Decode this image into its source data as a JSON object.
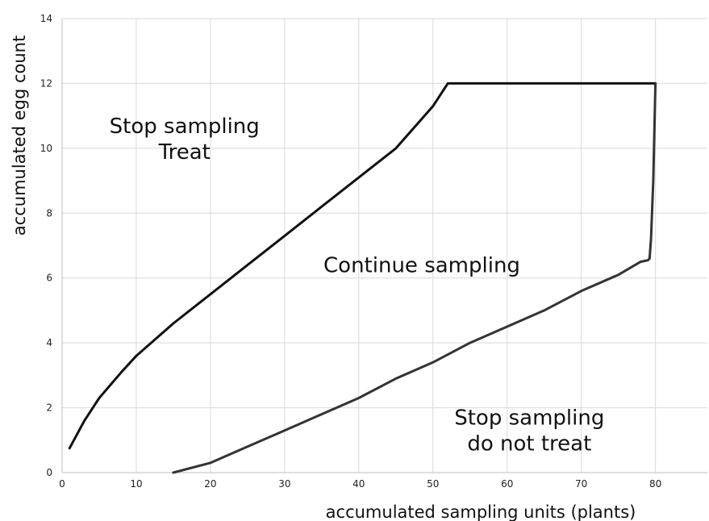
{
  "chart_data": {
    "type": "line",
    "title": "",
    "xlabel": "accumulated sampling units (plants)",
    "ylabel": "accumulated egg count",
    "xlim": [
      0,
      87
    ],
    "ylim": [
      0,
      14
    ],
    "x_ticks": [
      0,
      10,
      20,
      30,
      40,
      50,
      60,
      70,
      80
    ],
    "y_ticks": [
      0,
      2,
      4,
      6,
      8,
      10,
      12,
      14
    ],
    "grid": true,
    "legend": "none",
    "series": [
      {
        "color": "#111111",
        "points": [
          [
            1,
            0.75
          ],
          [
            3,
            1.6
          ],
          [
            5,
            2.3
          ],
          [
            8,
            3.1
          ],
          [
            10,
            3.6
          ],
          [
            15,
            4.6
          ],
          [
            20,
            5.5
          ],
          [
            25,
            6.4
          ],
          [
            30,
            7.3
          ],
          [
            35,
            8.2
          ],
          [
            40,
            9.1
          ],
          [
            45,
            10.0
          ],
          [
            50,
            11.3
          ],
          [
            52,
            12.0
          ],
          [
            53,
            12.0
          ],
          [
            60,
            12.0
          ],
          [
            70,
            12.0
          ],
          [
            80,
            12.0
          ]
        ]
      },
      {
        "color": "#333333",
        "points": [
          [
            15,
            0
          ],
          [
            20,
            0.3
          ],
          [
            25,
            0.8
          ],
          [
            30,
            1.3
          ],
          [
            35,
            1.8
          ],
          [
            40,
            2.3
          ],
          [
            45,
            2.9
          ],
          [
            50,
            3.4
          ],
          [
            55,
            4.0
          ],
          [
            60,
            4.5
          ],
          [
            65,
            5.0
          ],
          [
            70,
            5.6
          ],
          [
            75,
            6.1
          ],
          [
            78,
            6.5
          ],
          [
            79,
            6.55
          ],
          [
            79.2,
            6.6
          ],
          [
            79.4,
            7.2
          ],
          [
            79.7,
            9.0
          ],
          [
            80,
            12.0
          ]
        ]
      }
    ],
    "annotations": [
      {
        "lines": [
          "Stop sampling",
          "Treat"
        ],
        "x": 16.5,
        "y": 10.3
      },
      {
        "lines": [
          "Continue sampling"
        ],
        "x": 48.5,
        "y": 6.4
      },
      {
        "lines": [
          "Stop sampling",
          "do not treat"
        ],
        "x": 63,
        "y": 1.3
      }
    ]
  }
}
